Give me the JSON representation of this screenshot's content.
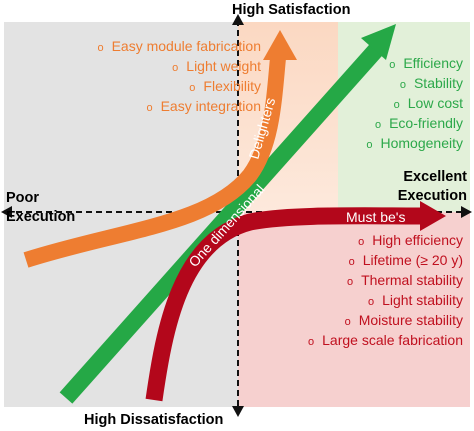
{
  "axes": {
    "top": "High Satisfaction",
    "bottom": "High Dissatisfaction",
    "left_line1": "Poor",
    "left_line2": "Execution",
    "right_line1": "Excellent",
    "right_line2": "Execution"
  },
  "curves": {
    "delighters": "Delighters",
    "one_dimensional": "One dimensional",
    "must_bes": "Must be's"
  },
  "lists": {
    "delighters": [
      "Easy module fabrication",
      "Light weight",
      "Flexibility",
      "Easy integration"
    ],
    "one_dimensional": [
      "Efficiency",
      "Stability",
      "Low cost",
      "Eco-friendly",
      "Homogeneity"
    ],
    "must_bes": [
      "High efficiency",
      "Lifetime (≥ 20 y)",
      "Thermal stability",
      "Light stability",
      "Moisture stability",
      "Large scale fabrication"
    ]
  },
  "bullet": "o",
  "colors": {
    "orange": "#ee7d31",
    "green": "#2ca84a",
    "red": "#c0101f",
    "grey_bg": "#e3e3e3",
    "orange_bg": "#fbe2d3",
    "green_bg": "#e2f0d9",
    "red_bg": "#f6d0cf"
  }
}
